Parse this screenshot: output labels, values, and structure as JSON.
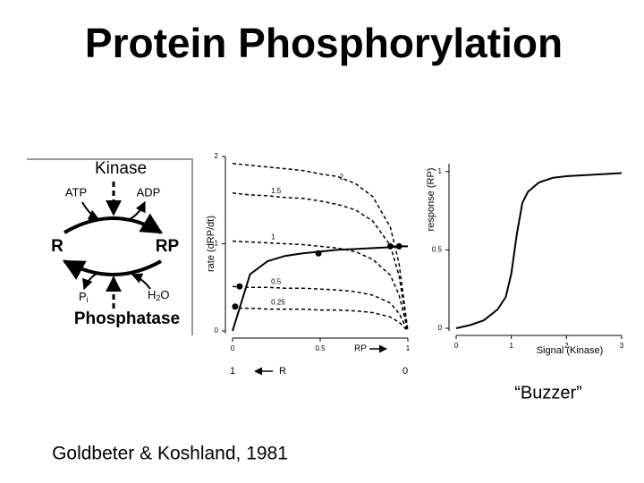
{
  "title": "Protein Phosphorylation",
  "diagram": {
    "kinase": "Kinase",
    "atp": "ATP",
    "adp": "ADP",
    "r": "R",
    "rp": "RP",
    "pi": [
      "P",
      "i"
    ],
    "h2o": [
      "H",
      "2",
      "O"
    ],
    "phosphatase": "Phosphatase"
  },
  "chart_data": [
    {
      "type": "line",
      "y_label": "rate (dRP/dt)",
      "x_label": "RP",
      "xlim": [
        0,
        1
      ],
      "ylim": [
        0,
        2
      ],
      "xticks": [
        0,
        0.5,
        1
      ],
      "yticks": [
        0,
        1,
        2
      ],
      "x": [
        0,
        0.1,
        0.2,
        0.3,
        0.4,
        0.5,
        0.6,
        0.7,
        0.8,
        0.9,
        0.95,
        1
      ],
      "series": [
        {
          "name": "2",
          "color": "#000000",
          "style": "dashed",
          "values": [
            1.92,
            1.9,
            1.88,
            1.86,
            1.84,
            1.8,
            1.77,
            1.69,
            1.54,
            1.19,
            0.77,
            0
          ]
        },
        {
          "name": "1.5",
          "color": "#000000",
          "style": "dashed",
          "values": [
            1.58,
            1.56,
            1.55,
            1.53,
            1.52,
            1.49,
            1.45,
            1.39,
            1.26,
            0.98,
            0.63,
            0
          ]
        },
        {
          "name": "1",
          "color": "#000000",
          "style": "dashed",
          "values": [
            1.03,
            1.02,
            1.01,
            1,
            0.99,
            0.97,
            0.95,
            0.91,
            0.82,
            0.64,
            0.41,
            0
          ]
        },
        {
          "name": "0.5",
          "color": "#000000",
          "style": "dashed",
          "values": [
            0.51,
            0.5,
            0.5,
            0.49,
            0.49,
            0.48,
            0.47,
            0.45,
            0.41,
            0.32,
            0.2,
            0
          ]
        },
        {
          "name": "0.25",
          "color": "#000000",
          "style": "dashed",
          "values": [
            0.26,
            0.26,
            0.25,
            0.25,
            0.25,
            0.24,
            0.24,
            0.23,
            0.21,
            0.16,
            0.1,
            0
          ]
        },
        {
          "color": "#000000",
          "style": "solid",
          "values": [
            0,
            0.65,
            0.8,
            0.86,
            0.89,
            0.91,
            0.93,
            0.94,
            0.95,
            0.96,
            0.97,
            0.97
          ]
        }
      ],
      "points": {
        "x": [
          0.015,
          0.04,
          0.49,
          0.9,
          0.95
        ],
        "y": [
          0.28,
          0.51,
          0.89,
          0.97,
          0.97
        ]
      },
      "r_axis": {
        "label": "R",
        "ticks": [
          1,
          0
        ]
      }
    },
    {
      "type": "line",
      "y_label": "response (RP)",
      "x_label": "Signal (Kinase)",
      "xlim": [
        0,
        3
      ],
      "ylim": [
        0,
        1.05
      ],
      "xticks": [
        0,
        1,
        2,
        3
      ],
      "yticks": [
        0,
        0.5,
        1
      ],
      "x": [
        0,
        0.25,
        0.5,
        0.75,
        0.9,
        1,
        1.1,
        1.2,
        1.3,
        1.5,
        1.75,
        2,
        2.5,
        3
      ],
      "series": [
        {
          "color": "#000000",
          "style": "solid",
          "values": [
            0,
            0.02,
            0.05,
            0.12,
            0.2,
            0.35,
            0.6,
            0.8,
            0.87,
            0.93,
            0.96,
            0.97,
            0.98,
            0.99
          ]
        }
      ]
    }
  ],
  "caption": "“Buzzer”",
  "citation": "Goldbeter & Koshland, 1981"
}
